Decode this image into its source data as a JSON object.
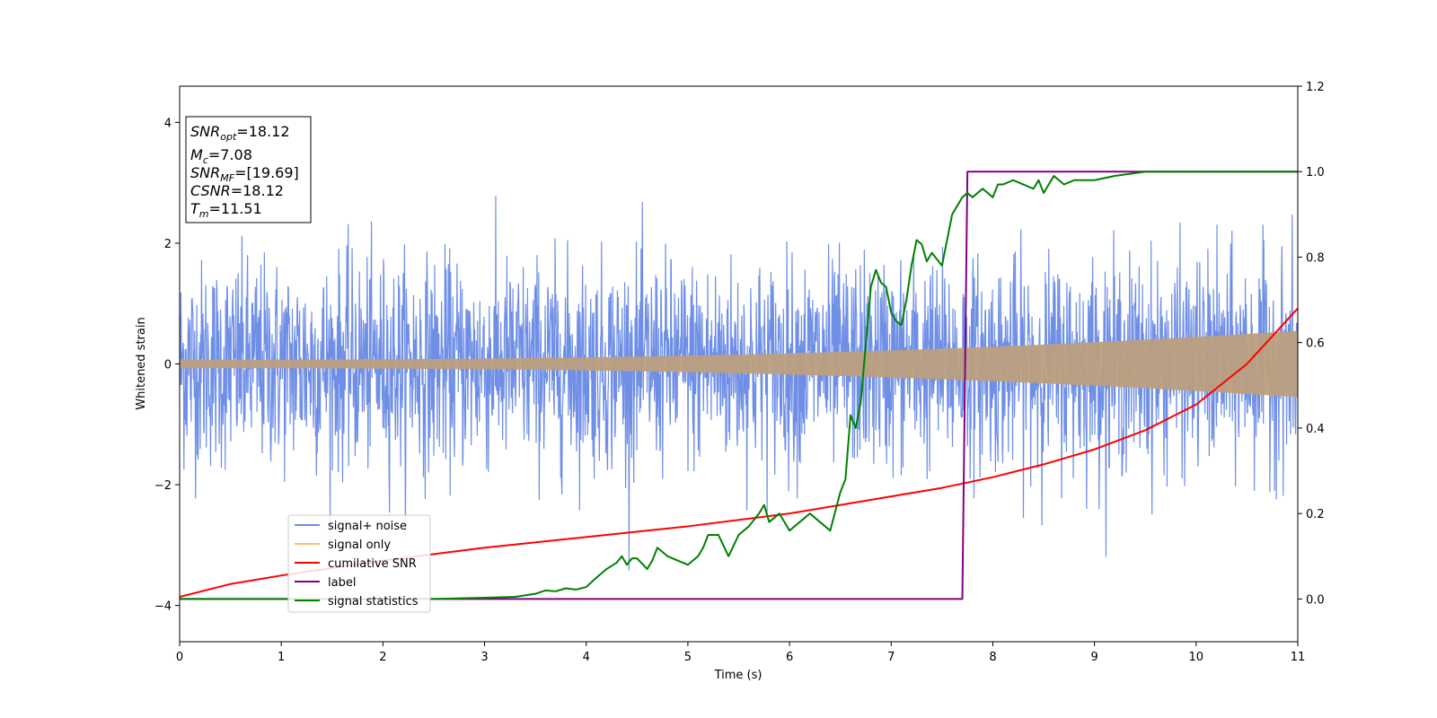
{
  "chart_data": {
    "type": "line",
    "title": "",
    "xlabel": "Time (s)",
    "ylabel": "Whitened strain",
    "xlim": [
      0,
      11
    ],
    "ylim_left": [
      -4.6,
      4.6
    ],
    "ylim_right": [
      -0.1,
      1.2
    ],
    "x_ticks": [
      "0",
      "1",
      "2",
      "3",
      "4",
      "5",
      "6",
      "7",
      "8",
      "9",
      "10",
      "11"
    ],
    "y_left_ticks": [
      "4",
      "2",
      "0",
      "−2",
      "−4"
    ],
    "y_left_tick_values": [
      4,
      2,
      0,
      -2,
      -4
    ],
    "y_right_ticks": [
      "1.2",
      "1.0",
      "0.8",
      "0.6",
      "0.4",
      "0.2",
      "0.0"
    ],
    "y_right_tick_values": [
      1.2,
      1.0,
      0.8,
      0.6,
      0.4,
      0.2,
      0.0
    ],
    "grid": false,
    "legend_position": "lower-left",
    "colors": {
      "signal_noise": "#6f8fe6",
      "signal_only": "#f5c26b",
      "overlap": "#bb9f7e",
      "cumulative_snr": "#ff0000",
      "label": "#800080",
      "signal_statistics": "#008000"
    },
    "annotation": {
      "lines": [
        {
          "main": "SNR",
          "sub": "opt",
          "value": "=18.12"
        },
        {
          "main": "M",
          "sub": "c",
          "value": "=7.08"
        },
        {
          "main": "SNR",
          "sub": "MF",
          "value": "=[19.69]"
        },
        {
          "main": "CSNR",
          "sub": "",
          "value": "=18.12"
        },
        {
          "main": "T",
          "sub": "m",
          "value": "=11.51"
        }
      ]
    },
    "series": [
      {
        "name": "signal+ noise",
        "axis": "left",
        "style": "noise",
        "amplitude_std": 0.85,
        "max_abs": 4.1
      },
      {
        "name": "signal only",
        "axis": "left",
        "style": "chirp",
        "amplitude_start": 0.07,
        "amplitude_end": 0.55
      },
      {
        "name": "cumilative SNR",
        "axis": "right",
        "x": [
          0,
          0.5,
          1,
          2,
          3,
          4,
          5,
          6,
          7,
          7.5,
          8,
          8.5,
          9,
          9.5,
          10,
          10.5,
          11
        ],
        "y": [
          0.005,
          0.035,
          0.055,
          0.09,
          0.12,
          0.145,
          0.17,
          0.2,
          0.24,
          0.26,
          0.285,
          0.315,
          0.35,
          0.395,
          0.455,
          0.55,
          0.68
        ]
      },
      {
        "name": "label",
        "axis": "right",
        "x": [
          0,
          7.7,
          7.75,
          11
        ],
        "y": [
          0,
          0,
          1,
          1
        ]
      },
      {
        "name": "signal statistics",
        "axis": "right",
        "x": [
          0,
          2.5,
          3.0,
          3.3,
          3.5,
          3.6,
          3.7,
          3.8,
          3.9,
          4.0,
          4.1,
          4.2,
          4.3,
          4.35,
          4.4,
          4.45,
          4.5,
          4.6,
          4.65,
          4.7,
          4.8,
          4.9,
          5.0,
          5.1,
          5.15,
          5.2,
          5.3,
          5.4,
          5.5,
          5.6,
          5.7,
          5.75,
          5.8,
          5.9,
          6.0,
          6.1,
          6.2,
          6.3,
          6.4,
          6.5,
          6.55,
          6.6,
          6.65,
          6.7,
          6.8,
          6.85,
          6.9,
          6.95,
          7.0,
          7.05,
          7.1,
          7.15,
          7.2,
          7.25,
          7.3,
          7.35,
          7.4,
          7.5,
          7.55,
          7.6,
          7.65,
          7.7,
          7.75,
          7.8,
          7.9,
          8.0,
          8.05,
          8.1,
          8.2,
          8.3,
          8.4,
          8.45,
          8.5,
          8.55,
          8.6,
          8.7,
          8.8,
          8.9,
          9.0,
          9.2,
          9.5,
          10.0,
          11.0
        ],
        "y": [
          0.0,
          0.0,
          0.003,
          0.005,
          0.012,
          0.02,
          0.018,
          0.025,
          0.022,
          0.028,
          0.05,
          0.07,
          0.085,
          0.1,
          0.08,
          0.095,
          0.095,
          0.07,
          0.09,
          0.12,
          0.1,
          0.09,
          0.08,
          0.1,
          0.12,
          0.15,
          0.15,
          0.1,
          0.15,
          0.17,
          0.2,
          0.22,
          0.18,
          0.2,
          0.16,
          0.18,
          0.2,
          0.18,
          0.16,
          0.25,
          0.28,
          0.43,
          0.4,
          0.46,
          0.73,
          0.77,
          0.74,
          0.73,
          0.67,
          0.65,
          0.64,
          0.7,
          0.78,
          0.84,
          0.83,
          0.79,
          0.81,
          0.78,
          0.84,
          0.9,
          0.92,
          0.94,
          0.95,
          0.94,
          0.96,
          0.94,
          0.97,
          0.97,
          0.98,
          0.97,
          0.96,
          0.98,
          0.95,
          0.97,
          0.99,
          0.97,
          0.98,
          0.98,
          0.98,
          0.99,
          1.0,
          1.0,
          1.0
        ]
      }
    ]
  }
}
